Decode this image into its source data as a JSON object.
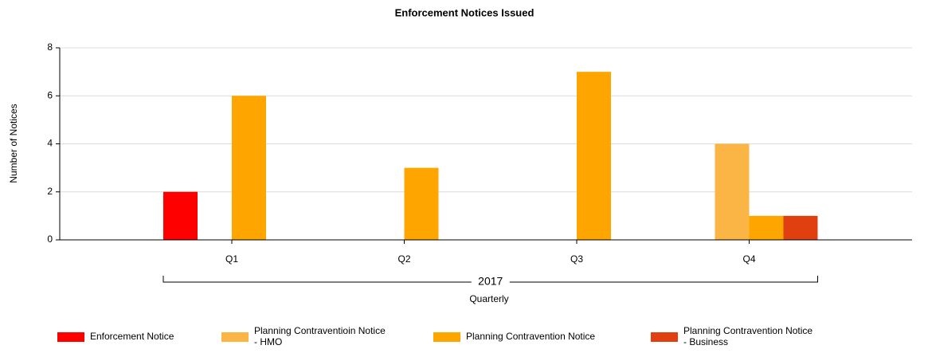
{
  "chart_data": {
    "type": "bar",
    "title": "Enforcement Notices Issued",
    "y_label": "Number of Notices",
    "x_group_label": "2017",
    "x_label": "Quarterly",
    "categories": [
      "Q1",
      "Q2",
      "Q3",
      "Q4"
    ],
    "series": [
      {
        "name": "Enforcement Notice",
        "color": "#ff0000",
        "values": [
          2,
          null,
          null,
          null
        ]
      },
      {
        "name": "Planning Contraventioin Notice - HMO",
        "color": "#fbb545",
        "values": [
          null,
          null,
          null,
          4
        ]
      },
      {
        "name": "Planning Contravention Notice",
        "color": "#ffa500",
        "values": [
          6,
          3,
          7,
          1
        ]
      },
      {
        "name": "Planning Contravention Notice - Business",
        "color": "#e04010",
        "values": [
          null,
          null,
          null,
          1
        ]
      }
    ],
    "ylim": [
      0,
      8
    ],
    "yticks": [
      0,
      2,
      4,
      6,
      8
    ],
    "grid": true,
    "legend": "bottom"
  }
}
